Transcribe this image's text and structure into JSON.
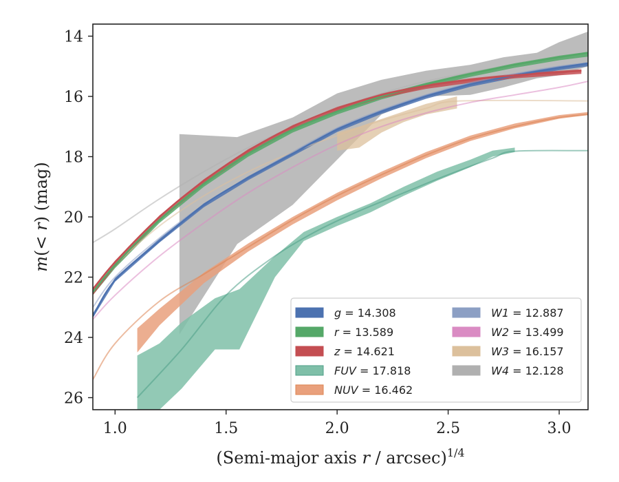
{
  "chart_data": {
    "type": "line",
    "xlabel": "(Semi-major axis r / arcsec)^{1/4}",
    "ylabel": "m(< r) (mag)",
    "xlim": [
      0.9,
      3.13
    ],
    "ylim": [
      26.4,
      13.6
    ],
    "y_inverted": true,
    "xticks": [
      1.0,
      1.5,
      2.0,
      2.5,
      3.0
    ],
    "xtick_labels": [
      "1.0",
      "1.5",
      "2.0",
      "2.5",
      "3.0"
    ],
    "yticks": [
      14,
      16,
      18,
      20,
      22,
      24,
      26
    ],
    "ytick_labels": [
      "14",
      "16",
      "18",
      "20",
      "22",
      "24",
      "26"
    ],
    "grid": false,
    "legend_position": "lower-right",
    "series": [
      {
        "name": "g",
        "label_value": "14.308",
        "color": "#4c72b0",
        "model": [
          [
            0.9,
            23.3
          ],
          [
            1.0,
            22.1
          ],
          [
            1.2,
            20.8
          ],
          [
            1.4,
            19.6
          ],
          [
            1.6,
            18.7
          ],
          [
            1.8,
            17.9
          ],
          [
            2.0,
            17.1
          ],
          [
            2.2,
            16.5
          ],
          [
            2.4,
            16.0
          ],
          [
            2.6,
            15.6
          ],
          [
            2.8,
            15.3
          ],
          [
            3.0,
            15.05
          ],
          [
            3.13,
            14.9
          ]
        ],
        "band_x": [
          0.9,
          1.0,
          1.2,
          1.4,
          1.6,
          1.8,
          2.0,
          2.2,
          2.4,
          2.6,
          2.8,
          3.0,
          3.13
        ],
        "band_lower": [
          23.35,
          22.15,
          20.85,
          19.68,
          18.78,
          17.98,
          17.18,
          16.58,
          16.08,
          15.68,
          15.38,
          15.13,
          15.0
        ],
        "band_upper": [
          23.2,
          22.02,
          20.72,
          19.55,
          18.65,
          17.85,
          17.05,
          16.45,
          15.95,
          15.55,
          15.25,
          15.0,
          14.88
        ]
      },
      {
        "name": "r",
        "label_value": "13.589",
        "color": "#55a868",
        "model": [
          [
            0.9,
            22.5
          ],
          [
            1.0,
            21.6
          ],
          [
            1.2,
            20.1
          ],
          [
            1.4,
            18.9
          ],
          [
            1.6,
            17.9
          ],
          [
            1.8,
            17.1
          ],
          [
            2.0,
            16.5
          ],
          [
            2.2,
            16.0
          ],
          [
            2.4,
            15.6
          ],
          [
            2.6,
            15.25
          ],
          [
            2.8,
            14.95
          ],
          [
            3.0,
            14.7
          ],
          [
            3.13,
            14.55
          ]
        ],
        "band_x": [
          0.9,
          1.0,
          1.2,
          1.4,
          1.6,
          1.8,
          2.0,
          2.2,
          2.4,
          2.6,
          2.8,
          3.0,
          3.13
        ],
        "band_lower": [
          22.6,
          21.7,
          20.2,
          19.0,
          18.0,
          17.2,
          16.6,
          16.1,
          15.7,
          15.35,
          15.05,
          14.8,
          14.68
        ],
        "band_upper": [
          22.45,
          21.55,
          20.05,
          18.85,
          17.85,
          17.05,
          16.45,
          15.95,
          15.55,
          15.2,
          14.9,
          14.65,
          14.52
        ]
      },
      {
        "name": "z",
        "label_value": "14.621",
        "color": "#c44e52",
        "model": [
          [
            0.9,
            22.4
          ],
          [
            1.0,
            21.5
          ],
          [
            1.2,
            20.0
          ],
          [
            1.4,
            18.8
          ],
          [
            1.6,
            17.8
          ],
          [
            1.8,
            17.0
          ],
          [
            2.0,
            16.4
          ],
          [
            2.2,
            15.95
          ],
          [
            2.4,
            15.65
          ],
          [
            2.6,
            15.45
          ],
          [
            2.8,
            15.3
          ],
          [
            3.0,
            15.2
          ],
          [
            3.1,
            15.15
          ]
        ],
        "band_x": [
          0.9,
          1.0,
          1.2,
          1.4,
          1.6,
          1.8,
          2.0,
          2.2,
          2.4,
          2.6,
          2.8,
          3.0,
          3.1
        ],
        "band_lower": [
          22.6,
          21.65,
          20.12,
          18.92,
          17.92,
          17.1,
          16.5,
          16.05,
          15.75,
          15.55,
          15.4,
          15.3,
          15.25
        ],
        "band_upper": [
          22.35,
          21.45,
          19.95,
          18.75,
          17.75,
          16.95,
          16.35,
          15.9,
          15.6,
          15.4,
          15.25,
          15.15,
          15.1
        ]
      },
      {
        "name": "FUV",
        "label_value": "17.818",
        "color": "#4c9f87",
        "band_color": "#7fbfa8",
        "model": [
          [
            1.1,
            26.0
          ],
          [
            1.3,
            24.4
          ],
          [
            1.5,
            22.6
          ],
          [
            1.7,
            21.4
          ],
          [
            1.9,
            20.5
          ],
          [
            2.1,
            19.8
          ],
          [
            2.3,
            19.2
          ],
          [
            2.5,
            18.6
          ],
          [
            2.7,
            18.05
          ],
          [
            2.8,
            17.82
          ],
          [
            3.13,
            17.8
          ]
        ],
        "band_x": [
          1.1,
          1.2,
          1.3,
          1.45,
          1.56,
          1.72,
          1.85,
          2.0,
          2.15,
          2.3,
          2.45,
          2.6,
          2.7,
          2.8
        ],
        "band_lower": [
          26.4,
          26.4,
          25.7,
          24.4,
          24.4,
          22.0,
          20.8,
          20.3,
          19.85,
          19.3,
          18.8,
          18.35,
          18.0,
          17.85
        ],
        "band_upper": [
          24.6,
          24.2,
          23.5,
          22.7,
          22.4,
          21.3,
          20.5,
          20.0,
          19.55,
          19.0,
          18.5,
          18.1,
          17.8,
          17.7
        ]
      },
      {
        "name": "NUV",
        "label_value": "16.462",
        "color": "#dd8452",
        "band_color": "#e9a07c",
        "model": [
          [
            0.9,
            25.4
          ],
          [
            1.0,
            24.2
          ],
          [
            1.2,
            22.8
          ],
          [
            1.4,
            21.9
          ],
          [
            1.6,
            21.0
          ],
          [
            1.8,
            20.1
          ],
          [
            2.0,
            19.3
          ],
          [
            2.2,
            18.6
          ],
          [
            2.4,
            17.95
          ],
          [
            2.6,
            17.4
          ],
          [
            2.8,
            17.0
          ],
          [
            3.0,
            16.7
          ],
          [
            3.13,
            16.6
          ]
        ],
        "band_x": [
          1.1,
          1.2,
          1.3,
          1.4,
          1.6,
          1.8,
          2.0,
          2.2,
          2.4,
          2.6,
          2.8,
          3.0,
          3.13
        ],
        "band_lower": [
          24.5,
          23.6,
          22.9,
          22.2,
          21.15,
          20.25,
          19.45,
          18.72,
          18.05,
          17.48,
          17.06,
          16.74,
          16.62
        ],
        "band_upper": [
          23.7,
          23.05,
          22.45,
          21.85,
          20.88,
          20.0,
          19.2,
          18.5,
          17.85,
          17.3,
          16.9,
          16.62,
          16.52
        ]
      },
      {
        "name": "W1",
        "label_value": "12.887",
        "color": "#8c9fc4",
        "model": [
          [
            0.9,
            23.0
          ],
          [
            1.0,
            22.0
          ],
          [
            1.2,
            20.7
          ],
          [
            1.4,
            19.6
          ],
          [
            1.6,
            18.7
          ],
          [
            1.8,
            17.85
          ],
          [
            2.0,
            17.05
          ],
          [
            2.2,
            16.45
          ],
          [
            2.4,
            15.95
          ],
          [
            2.6,
            15.55
          ],
          [
            2.8,
            15.25
          ],
          [
            3.0,
            15.0
          ],
          [
            3.13,
            14.88
          ]
        ],
        "band_x": [],
        "band_lower": [],
        "band_upper": []
      },
      {
        "name": "W2",
        "label_value": "13.499",
        "color": "#da8bc3",
        "model": [
          [
            0.9,
            23.4
          ],
          [
            1.0,
            22.6
          ],
          [
            1.2,
            21.3
          ],
          [
            1.4,
            20.2
          ],
          [
            1.6,
            19.2
          ],
          [
            1.8,
            18.35
          ],
          [
            2.0,
            17.6
          ],
          [
            2.2,
            17.0
          ],
          [
            2.4,
            16.55
          ],
          [
            2.6,
            16.2
          ],
          [
            2.8,
            15.95
          ],
          [
            3.0,
            15.7
          ],
          [
            3.13,
            15.5
          ]
        ],
        "band_x": [],
        "band_lower": [],
        "band_upper": []
      },
      {
        "name": "W3",
        "label_value": "16.157",
        "color": "#dcc09c",
        "model": [
          [
            0.9,
            22.5
          ],
          [
            1.0,
            21.6
          ],
          [
            1.2,
            20.3
          ],
          [
            1.4,
            19.3
          ],
          [
            1.6,
            18.5
          ],
          [
            1.8,
            17.85
          ],
          [
            2.0,
            17.3
          ],
          [
            2.2,
            16.8
          ],
          [
            2.4,
            16.4
          ],
          [
            2.55,
            16.15
          ],
          [
            3.13,
            16.15
          ]
        ],
        "band_x": [
          2.0,
          2.1,
          2.2,
          2.3,
          2.4,
          2.54
        ],
        "band_lower": [
          17.8,
          17.7,
          17.2,
          16.85,
          16.6,
          16.4
        ],
        "band_upper": [
          17.2,
          17.0,
          16.75,
          16.5,
          16.25,
          16.0
        ]
      },
      {
        "name": "W4",
        "label_value": "12.128",
        "color": "#b0b0b0",
        "model": [
          [
            0.9,
            20.85
          ],
          [
            1.0,
            20.4
          ],
          [
            1.2,
            19.4
          ],
          [
            1.4,
            18.5
          ],
          [
            1.6,
            17.7
          ],
          [
            1.8,
            17.0
          ],
          [
            2.0,
            16.4
          ],
          [
            2.2,
            15.9
          ],
          [
            2.4,
            15.5
          ],
          [
            2.6,
            15.2
          ],
          [
            2.8,
            14.95
          ],
          [
            3.0,
            14.7
          ],
          [
            3.13,
            14.55
          ]
        ],
        "band_x": [
          1.29,
          1.55,
          1.8,
          2.0,
          2.2,
          2.4,
          2.6,
          2.75,
          2.9,
          3.0,
          3.13
        ],
        "band_lower": [
          23.9,
          20.9,
          19.6,
          18.1,
          16.6,
          16.0,
          15.95,
          15.7,
          15.4,
          15.3,
          15.0
        ],
        "band_upper": [
          17.25,
          17.35,
          16.7,
          15.9,
          15.45,
          15.15,
          14.95,
          14.7,
          14.55,
          14.2,
          13.85
        ]
      }
    ]
  }
}
